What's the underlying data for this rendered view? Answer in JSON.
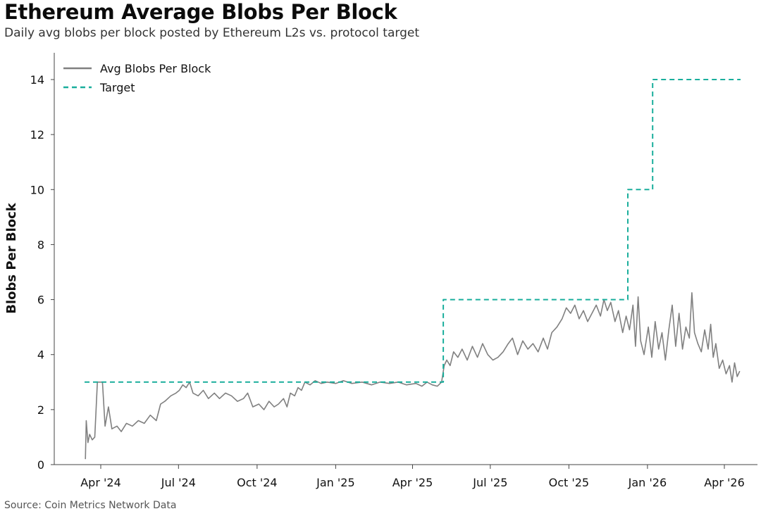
{
  "header": {
    "title": "Ethereum Average Blobs Per Block",
    "subtitle": "Daily avg blobs per block posted by Ethereum L2s vs. protocol target"
  },
  "footer": {
    "source": "Source: Coin Metrics Network Data"
  },
  "colors": {
    "actual": "#808080",
    "target": "#1aae9c",
    "axis": "#444444"
  },
  "chart_data": {
    "type": "line",
    "ylabel": "Blobs Per Block",
    "xlabel": "",
    "ylim": [
      0,
      15
    ],
    "yticks": [
      0,
      2,
      4,
      6,
      8,
      10,
      12,
      14
    ],
    "xlim": [
      "2024-03-10",
      "2026-05-15"
    ],
    "xticks": [
      {
        "date": "2024-04-01",
        "label": "Apr '24"
      },
      {
        "date": "2024-07-01",
        "label": "Jul '24"
      },
      {
        "date": "2024-10-01",
        "label": "Oct '24"
      },
      {
        "date": "2025-01-01",
        "label": "Jan '25"
      },
      {
        "date": "2025-04-01",
        "label": "Apr '25"
      },
      {
        "date": "2025-07-01",
        "label": "Jul '25"
      },
      {
        "date": "2025-10-01",
        "label": "Oct '25"
      },
      {
        "date": "2026-01-01",
        "label": "Jan '26"
      },
      {
        "date": "2026-04-01",
        "label": "Apr '26"
      }
    ],
    "legend_position": "top-left",
    "grid": false,
    "series": [
      {
        "name": "Avg Blobs Per Block",
        "style": "solid",
        "points": [
          [
            "2024-03-14",
            0.2
          ],
          [
            "2024-03-15",
            1.6
          ],
          [
            "2024-03-17",
            0.8
          ],
          [
            "2024-03-19",
            1.1
          ],
          [
            "2024-03-22",
            0.9
          ],
          [
            "2024-03-25",
            1.0
          ],
          [
            "2024-03-28",
            3.0
          ],
          [
            "2024-04-03",
            3.0
          ],
          [
            "2024-04-06",
            1.4
          ],
          [
            "2024-04-10",
            2.1
          ],
          [
            "2024-04-14",
            1.3
          ],
          [
            "2024-04-20",
            1.4
          ],
          [
            "2024-04-25",
            1.2
          ],
          [
            "2024-05-01",
            1.5
          ],
          [
            "2024-05-08",
            1.4
          ],
          [
            "2024-05-15",
            1.6
          ],
          [
            "2024-05-22",
            1.5
          ],
          [
            "2024-05-29",
            1.8
          ],
          [
            "2024-06-05",
            1.6
          ],
          [
            "2024-06-10",
            2.2
          ],
          [
            "2024-06-15",
            2.3
          ],
          [
            "2024-06-22",
            2.5
          ],
          [
            "2024-06-28",
            2.6
          ],
          [
            "2024-07-02",
            2.7
          ],
          [
            "2024-07-06",
            2.9
          ],
          [
            "2024-07-10",
            2.8
          ],
          [
            "2024-07-14",
            3.0
          ],
          [
            "2024-07-18",
            2.6
          ],
          [
            "2024-07-24",
            2.5
          ],
          [
            "2024-07-30",
            2.7
          ],
          [
            "2024-08-05",
            2.4
          ],
          [
            "2024-08-12",
            2.6
          ],
          [
            "2024-08-18",
            2.4
          ],
          [
            "2024-08-25",
            2.6
          ],
          [
            "2024-09-01",
            2.5
          ],
          [
            "2024-09-08",
            2.3
          ],
          [
            "2024-09-15",
            2.4
          ],
          [
            "2024-09-20",
            2.6
          ],
          [
            "2024-09-26",
            2.1
          ],
          [
            "2024-10-03",
            2.2
          ],
          [
            "2024-10-09",
            2.0
          ],
          [
            "2024-10-15",
            2.3
          ],
          [
            "2024-10-21",
            2.1
          ],
          [
            "2024-10-26",
            2.2
          ],
          [
            "2024-11-01",
            2.4
          ],
          [
            "2024-11-05",
            2.1
          ],
          [
            "2024-11-09",
            2.6
          ],
          [
            "2024-11-14",
            2.5
          ],
          [
            "2024-11-18",
            2.8
          ],
          [
            "2024-11-22",
            2.7
          ],
          [
            "2024-11-26",
            3.0
          ],
          [
            "2024-12-02",
            2.9
          ],
          [
            "2024-12-08",
            3.05
          ],
          [
            "2024-12-15",
            2.95
          ],
          [
            "2024-12-22",
            3.0
          ],
          [
            "2025-01-01",
            2.95
          ],
          [
            "2025-01-10",
            3.05
          ],
          [
            "2025-01-20",
            2.95
          ],
          [
            "2025-02-01",
            3.0
          ],
          [
            "2025-02-12",
            2.9
          ],
          [
            "2025-02-22",
            3.0
          ],
          [
            "2025-03-05",
            2.95
          ],
          [
            "2025-03-15",
            3.0
          ],
          [
            "2025-03-25",
            2.9
          ],
          [
            "2025-04-05",
            2.95
          ],
          [
            "2025-04-12",
            2.85
          ],
          [
            "2025-04-18",
            3.0
          ],
          [
            "2025-04-24",
            2.9
          ],
          [
            "2025-04-30",
            2.85
          ],
          [
            "2025-05-05",
            3.0
          ],
          [
            "2025-05-08",
            3.6
          ],
          [
            "2025-05-11",
            3.8
          ],
          [
            "2025-05-15",
            3.6
          ],
          [
            "2025-05-19",
            4.1
          ],
          [
            "2025-05-24",
            3.9
          ],
          [
            "2025-05-29",
            4.2
          ],
          [
            "2025-06-04",
            3.8
          ],
          [
            "2025-06-10",
            4.3
          ],
          [
            "2025-06-16",
            3.9
          ],
          [
            "2025-06-22",
            4.4
          ],
          [
            "2025-06-28",
            4.0
          ],
          [
            "2025-07-04",
            3.8
          ],
          [
            "2025-07-10",
            3.9
          ],
          [
            "2025-07-16",
            4.1
          ],
          [
            "2025-07-22",
            4.4
          ],
          [
            "2025-07-27",
            4.6
          ],
          [
            "2025-08-02",
            4.0
          ],
          [
            "2025-08-08",
            4.5
          ],
          [
            "2025-08-14",
            4.2
          ],
          [
            "2025-08-20",
            4.4
          ],
          [
            "2025-08-26",
            4.1
          ],
          [
            "2025-09-01",
            4.6
          ],
          [
            "2025-09-06",
            4.2
          ],
          [
            "2025-09-11",
            4.8
          ],
          [
            "2025-09-17",
            5.0
          ],
          [
            "2025-09-23",
            5.3
          ],
          [
            "2025-09-28",
            5.7
          ],
          [
            "2025-10-03",
            5.5
          ],
          [
            "2025-10-08",
            5.8
          ],
          [
            "2025-10-13",
            5.3
          ],
          [
            "2025-10-18",
            5.6
          ],
          [
            "2025-10-23",
            5.2
          ],
          [
            "2025-10-28",
            5.5
          ],
          [
            "2025-11-02",
            5.8
          ],
          [
            "2025-11-07",
            5.4
          ],
          [
            "2025-11-11",
            6.0
          ],
          [
            "2025-11-15",
            5.6
          ],
          [
            "2025-11-19",
            5.9
          ],
          [
            "2025-11-24",
            5.2
          ],
          [
            "2025-11-28",
            5.6
          ],
          [
            "2025-12-03",
            4.8
          ],
          [
            "2025-12-07",
            5.4
          ],
          [
            "2025-12-11",
            4.9
          ],
          [
            "2025-12-15",
            5.8
          ],
          [
            "2025-12-18",
            4.3
          ],
          [
            "2025-12-21",
            6.1
          ],
          [
            "2025-12-24",
            4.5
          ],
          [
            "2025-12-28",
            4.0
          ],
          [
            "2026-01-02",
            5.0
          ],
          [
            "2026-01-06",
            3.9
          ],
          [
            "2026-01-10",
            5.2
          ],
          [
            "2026-01-14",
            4.2
          ],
          [
            "2026-01-18",
            4.8
          ],
          [
            "2026-01-22",
            3.8
          ],
          [
            "2026-01-26",
            4.9
          ],
          [
            "2026-01-30",
            5.8
          ],
          [
            "2026-02-03",
            4.3
          ],
          [
            "2026-02-07",
            5.5
          ],
          [
            "2026-02-11",
            4.2
          ],
          [
            "2026-02-15",
            5.0
          ],
          [
            "2026-02-19",
            4.6
          ],
          [
            "2026-02-22",
            6.25
          ],
          [
            "2026-02-25",
            4.8
          ],
          [
            "2026-03-01",
            4.4
          ],
          [
            "2026-03-05",
            4.1
          ],
          [
            "2026-03-09",
            4.9
          ],
          [
            "2026-03-13",
            4.2
          ],
          [
            "2026-03-16",
            5.1
          ],
          [
            "2026-03-19",
            3.9
          ],
          [
            "2026-03-22",
            4.4
          ],
          [
            "2026-03-26",
            3.5
          ],
          [
            "2026-03-30",
            3.8
          ],
          [
            "2026-04-03",
            3.3
          ],
          [
            "2026-04-07",
            3.6
          ],
          [
            "2026-04-10",
            3.0
          ],
          [
            "2026-04-13",
            3.7
          ],
          [
            "2026-04-16",
            3.2
          ],
          [
            "2026-04-19",
            3.4
          ]
        ]
      },
      {
        "name": "Target",
        "style": "dashed",
        "points": [
          [
            "2024-03-13",
            3
          ],
          [
            "2025-05-07",
            3
          ],
          [
            "2025-05-07",
            6
          ],
          [
            "2025-12-09",
            6
          ],
          [
            "2025-12-09",
            10
          ],
          [
            "2026-01-07",
            10
          ],
          [
            "2026-01-07",
            14
          ],
          [
            "2026-04-20",
            14
          ]
        ]
      }
    ]
  }
}
